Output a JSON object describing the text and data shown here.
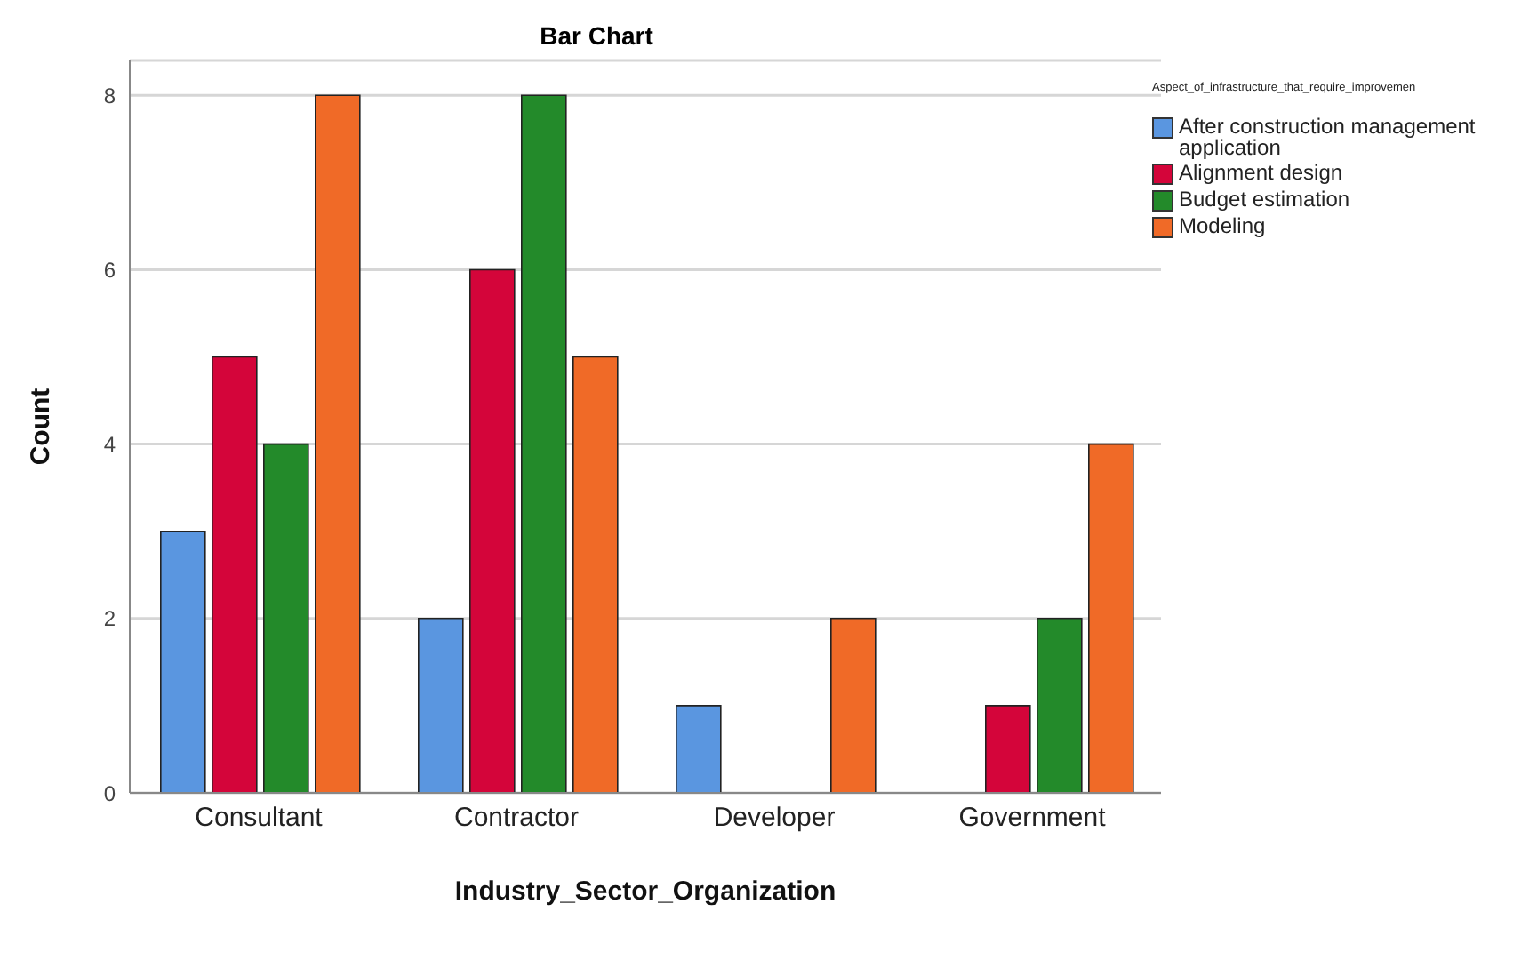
{
  "chart_data": {
    "type": "bar",
    "title": "Bar Chart",
    "xlabel": "Industry_Sector_Organization",
    "ylabel": "Count",
    "legend_title": "Aspect_of_infrastructure_that_require_improvemen",
    "categories": [
      "Consultant",
      "Contractor",
      "Developer",
      "Government"
    ],
    "series": [
      {
        "name": "After construction management application",
        "color": "#5a96e0",
        "values": [
          3,
          2,
          1,
          null
        ]
      },
      {
        "name": "Alignment design",
        "color": "#d4053a",
        "values": [
          5,
          6,
          null,
          1
        ]
      },
      {
        "name": "Budget estimation",
        "color": "#238a2a",
        "values": [
          4,
          8,
          null,
          2
        ]
      },
      {
        "name": "Modeling",
        "color": "#f06a27",
        "values": [
          8,
          5,
          2,
          4
        ]
      }
    ],
    "ylim": [
      0,
      8.4
    ],
    "yticks": [
      0,
      2,
      4,
      6,
      8
    ],
    "grid": "y",
    "legend": "top right"
  }
}
